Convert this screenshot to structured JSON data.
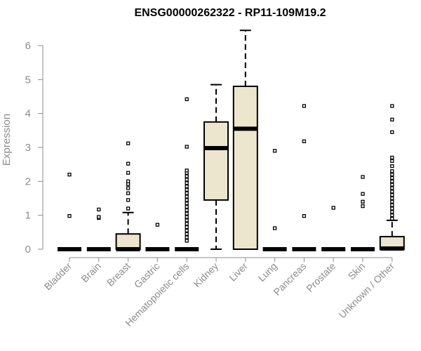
{
  "chart_data": {
    "type": "boxplot",
    "title": "ENSG00000262322 - RP11-109M19.2",
    "xlabel": "",
    "ylabel": "Expression",
    "ylim": [
      0,
      6.5
    ],
    "yticks": [
      0,
      1,
      2,
      3,
      4,
      5,
      6
    ],
    "colors": {
      "box_fill": "#ede6cf",
      "stroke": "#000000",
      "axis": "#8c8c8c"
    },
    "categories": [
      "Bladder",
      "Brain",
      "Breast",
      "Gastric",
      "Hematopoietic cells",
      "Kidney",
      "Liver",
      "Lung",
      "Pancreas",
      "Prostate",
      "Skin",
      "Unknown / Other"
    ],
    "boxes": [
      {
        "category": "Bladder",
        "min": 0,
        "q1": 0,
        "median": 0,
        "q3": 0,
        "max": 0,
        "outliers": [
          0.98,
          2.2
        ]
      },
      {
        "category": "Brain",
        "min": 0,
        "q1": 0,
        "median": 0,
        "q3": 0,
        "max": 0,
        "outliers": [
          0.92,
          0.95,
          1.17
        ]
      },
      {
        "category": "Breast",
        "min": 0,
        "q1": 0,
        "median": 0,
        "q3": 0.45,
        "max": 1.08,
        "outliers": [
          1.2,
          1.45,
          1.65,
          1.8,
          1.92,
          2.0,
          2.25,
          2.52,
          3.12
        ]
      },
      {
        "category": "Gastric",
        "min": 0,
        "q1": 0,
        "median": 0,
        "q3": 0,
        "max": 0,
        "outliers": [
          0.72
        ]
      },
      {
        "category": "Hematopoietic cells",
        "min": 0,
        "q1": 0,
        "median": 0,
        "q3": 0,
        "max": 0,
        "outliers": [
          0.25,
          0.35,
          0.45,
          0.55,
          0.65,
          0.75,
          0.85,
          0.95,
          1.05,
          1.15,
          1.25,
          1.35,
          1.45,
          1.55,
          1.65,
          1.75,
          1.85,
          1.95,
          2.05,
          2.15,
          2.25,
          2.32,
          3.02,
          4.42
        ]
      },
      {
        "category": "Kidney",
        "min": 0,
        "q1": 1.45,
        "median": 2.98,
        "q3": 3.75,
        "max": 4.85,
        "outliers": []
      },
      {
        "category": "Liver",
        "min": 0,
        "q1": 0,
        "median": 3.55,
        "q3": 4.8,
        "max": 6.45,
        "outliers": []
      },
      {
        "category": "Lung",
        "min": 0,
        "q1": 0,
        "median": 0,
        "q3": 0,
        "max": 0,
        "outliers": [
          0.62,
          2.9
        ]
      },
      {
        "category": "Pancreas",
        "min": 0,
        "q1": 0,
        "median": 0,
        "q3": 0,
        "max": 0,
        "outliers": [
          0.98,
          3.18,
          4.22
        ]
      },
      {
        "category": "Prostate",
        "min": 0,
        "q1": 0,
        "median": 0,
        "q3": 0,
        "max": 0,
        "outliers": [
          1.22
        ]
      },
      {
        "category": "Skin",
        "min": 0,
        "q1": 0,
        "median": 0,
        "q3": 0,
        "max": 0,
        "outliers": [
          1.27,
          1.4,
          1.63,
          2.13
        ]
      },
      {
        "category": "Unknown / Other",
        "min": 0,
        "q1": 0,
        "median": 0.02,
        "q3": 0.37,
        "max": 0.85,
        "outliers": [
          0.9,
          1.0,
          1.1,
          1.2,
          1.3,
          1.4,
          1.5,
          1.6,
          1.7,
          1.8,
          1.9,
          2.0,
          2.1,
          2.2,
          2.3,
          2.45,
          2.6,
          2.7,
          3.45,
          3.82,
          4.22
        ]
      }
    ]
  }
}
